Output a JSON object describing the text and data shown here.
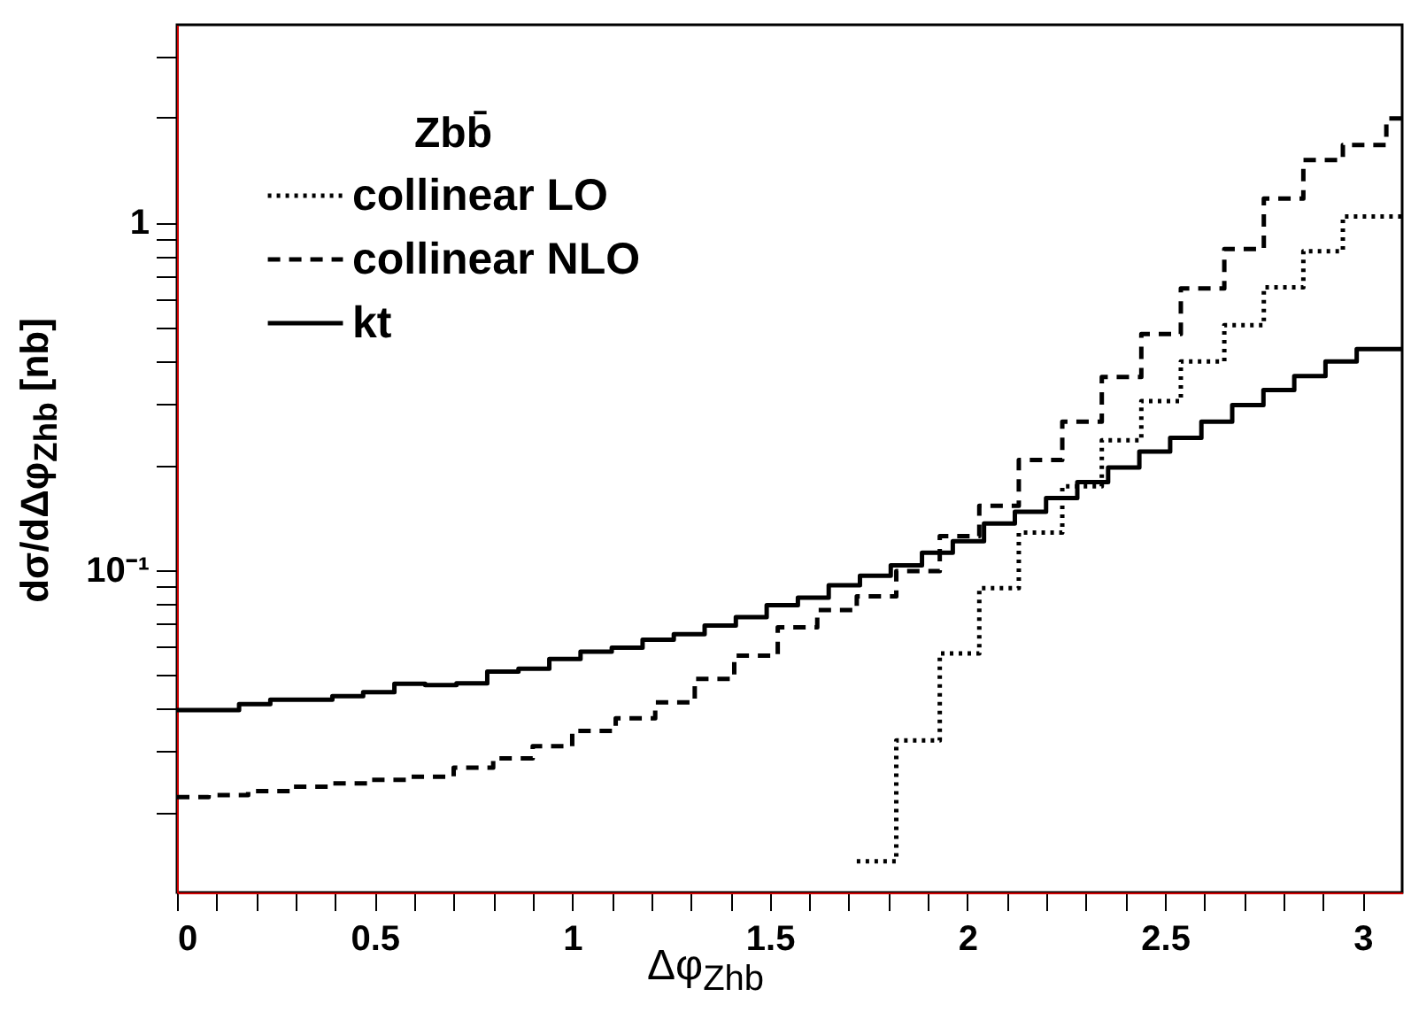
{
  "chart_data": {
    "type": "step",
    "xlabel": "Δφ$_{Zhb}$",
    "ylabel": "dσ/dΔφ$_{Zhb}$ [nb]",
    "legend_title": "Zbb̄",
    "legend": "top left",
    "log": "y",
    "grid": false,
    "xlim": [
      0,
      3.1
    ],
    "xticks": [
      0,
      {
        "value": 0.1,
        "label": null
      },
      {
        "value": 0.2,
        "label": null
      },
      {
        "value": 0.3,
        "label": null
      },
      {
        "value": 0.4,
        "label": null
      },
      0.5,
      {
        "value": 0.6,
        "label": null
      },
      {
        "value": 0.7,
        "label": null
      },
      {
        "value": 0.8,
        "label": null
      },
      {
        "value": 0.9,
        "label": null
      },
      1,
      {
        "value": 1.1,
        "label": null
      },
      {
        "value": 1.2,
        "label": null
      },
      {
        "value": 1.3,
        "label": null
      },
      {
        "value": 1.4,
        "label": null
      },
      1.5,
      {
        "value": 1.6,
        "label": null
      },
      {
        "value": 1.7,
        "label": null
      },
      {
        "value": 1.8,
        "label": null
      },
      {
        "value": 1.9,
        "label": null
      },
      2,
      {
        "value": 2.1,
        "label": null
      },
      {
        "value": 2.2,
        "label": null
      },
      {
        "value": 2.3,
        "label": null
      },
      {
        "value": 2.4,
        "label": null
      },
      2.5,
      {
        "value": 2.6,
        "label": null
      },
      {
        "value": 2.7,
        "label": null
      },
      {
        "value": 2.8,
        "label": null
      },
      {
        "value": 2.9,
        "label": null
      },
      3
    ],
    "ylim": [
      0.0118,
      3.7
    ],
    "yticks": [
      {
        "value": 0.02,
        "label": null
      },
      {
        "value": 0.03,
        "label": null
      },
      {
        "value": 0.04,
        "label": null
      },
      {
        "value": 0.05,
        "label": null
      },
      {
        "value": 0.06,
        "label": null
      },
      {
        "value": 0.07,
        "label": null
      },
      {
        "value": 0.08,
        "label": null
      },
      {
        "value": 0.09,
        "label": null
      },
      {
        "value": 0.1,
        "label": "10⁻¹"
      },
      {
        "value": 0.2,
        "label": null
      },
      {
        "value": 0.3,
        "label": null
      },
      {
        "value": 0.4,
        "label": null
      },
      {
        "value": 0.5,
        "label": null
      },
      {
        "value": 0.6,
        "label": null
      },
      {
        "value": 0.7,
        "label": null
      },
      {
        "value": 0.8,
        "label": null
      },
      {
        "value": 0.9,
        "label": null
      },
      1,
      {
        "value": 2,
        "label": null
      },
      {
        "value": 3,
        "label": null
      }
    ],
    "series": [
      {
        "name": "collinear LO",
        "color": "#000000",
        "line_style": "dotted",
        "x": [
          1.72,
          1.82,
          1.93,
          2.03,
          2.13,
          2.24,
          2.34,
          2.44,
          2.54,
          2.65,
          2.75,
          2.85,
          2.95,
          3.06,
          3.1
        ],
        "values": [
          0.0145,
          0.0323,
          0.0575,
          0.0886,
          0.128,
          0.174,
          0.236,
          0.306,
          0.398,
          0.506,
          0.65,
          0.826,
          1.04,
          1.04,
          1.04
        ]
      },
      {
        "name": "collinear NLO",
        "color": "#000000",
        "line_style": "dashed",
        "x": [
          0,
          0.08,
          0.18,
          0.29,
          0.39,
          0.49,
          0.59,
          0.7,
          0.8,
          0.9,
          1.0,
          1.11,
          1.21,
          1.31,
          1.41,
          1.52,
          1.62,
          1.72,
          1.82,
          1.93,
          2.03,
          2.13,
          2.24,
          2.34,
          2.44,
          2.54,
          2.65,
          2.75,
          2.85,
          2.95,
          3.06,
          3.1
        ],
        "values": [
          0.0222,
          0.0225,
          0.0231,
          0.0238,
          0.0243,
          0.0249,
          0.0254,
          0.027,
          0.0287,
          0.0311,
          0.0344,
          0.0374,
          0.0416,
          0.0486,
          0.0567,
          0.0684,
          0.0766,
          0.0839,
          0.0992,
          0.125,
          0.153,
          0.207,
          0.267,
          0.359,
          0.477,
          0.645,
          0.838,
          1.17,
          1.51,
          1.67,
          1.99,
          1.99
        ]
      },
      {
        "name": "kt",
        "color": "#000000",
        "line_style": "solid",
        "x": [
          0,
          0.079,
          0.157,
          0.236,
          0.314,
          0.393,
          0.471,
          0.55,
          0.628,
          0.707,
          0.785,
          0.864,
          0.942,
          1.021,
          1.1,
          1.178,
          1.257,
          1.335,
          1.414,
          1.492,
          1.571,
          1.649,
          1.728,
          1.806,
          1.885,
          1.963,
          2.042,
          2.12,
          2.199,
          2.278,
          2.356,
          2.435,
          2.513,
          2.592,
          2.67,
          2.749,
          2.827,
          2.906,
          2.985,
          3.063,
          3.1
        ],
        "values": [
          0.0395,
          0.0395,
          0.0411,
          0.0423,
          0.0423,
          0.0433,
          0.0445,
          0.047,
          0.0466,
          0.0472,
          0.051,
          0.052,
          0.0554,
          0.0582,
          0.0597,
          0.063,
          0.0653,
          0.0692,
          0.0731,
          0.0791,
          0.0832,
          0.0903,
          0.0962,
          0.103,
          0.112,
          0.121,
          0.136,
          0.147,
          0.161,
          0.179,
          0.197,
          0.219,
          0.24,
          0.267,
          0.298,
          0.329,
          0.361,
          0.398,
          0.432,
          0.432,
          0.432
        ]
      }
    ]
  }
}
